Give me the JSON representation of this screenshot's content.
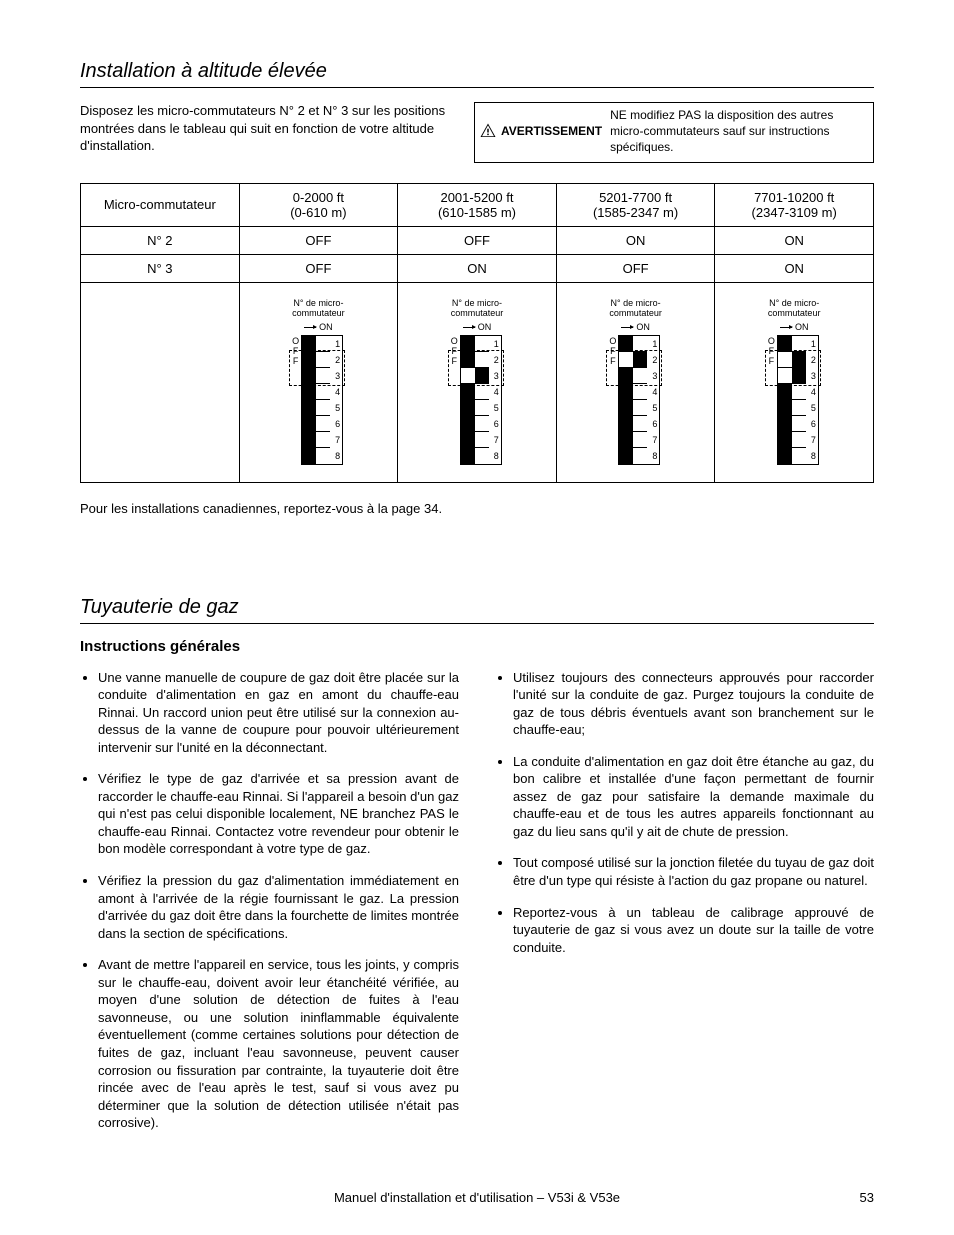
{
  "section1": {
    "title": "Installation à altitude élevée",
    "intro": "Disposez les micro-commutateurs N° 2 et N° 3 sur les positions montrées dans le tableau qui suit en fonction de votre altitude d'installation.",
    "warning_label": "AVERTISSEMENT",
    "warning_text": "NE modifiez PAS la disposition des autres micro-commutateurs sauf sur instructions spécifiques."
  },
  "table": {
    "header_row": [
      "Micro-commutateur",
      "0-2000 ft\n(0-610 m)",
      "2001-5200 ft\n(610-1585 m)",
      "5201-7700 ft\n(1585-2347 m)",
      "7701-10200 ft\n(2347-3109 m)"
    ],
    "row_n2": [
      "N° 2",
      "OFF",
      "OFF",
      "ON",
      "ON"
    ],
    "row_n3": [
      "N° 3",
      "OFF",
      "ON",
      "OFF",
      "ON"
    ],
    "diag_label": "N° de micro-\ncommutateur",
    "diag_on": "ON",
    "diag_off_letters": [
      "O",
      "F",
      "F"
    ],
    "switch_numbers": [
      "1",
      "2",
      "3",
      "4",
      "5",
      "6",
      "7",
      "8"
    ],
    "diagrams": [
      {
        "on_switches": []
      },
      {
        "on_switches": [
          3
        ]
      },
      {
        "on_switches": [
          2
        ]
      },
      {
        "on_switches": [
          2,
          3
        ]
      }
    ]
  },
  "post_table": "Pour les installations canadiennes, reportez-vous à la page 34.",
  "section2": {
    "title": "Tuyauterie de gaz",
    "subheading": "Instructions générales",
    "bullets": [
      "Une vanne manuelle de coupure de gaz doit être placée sur la conduite d'alimentation en gaz en amont du chauffe-eau Rinnai. Un raccord union peut être utilisé sur la connexion au-dessus de la vanne de coupure pour pouvoir ultérieurement intervenir sur l'unité en la déconnectant.",
      "Vérifiez le type de gaz d'arrivée et sa pression avant de raccorder le chauffe-eau Rinnai. Si l'appareil a besoin d'un gaz qui n'est pas celui disponible localement, NE branchez PAS le chauffe-eau Rinnai. Contactez votre revendeur pour obtenir le bon modèle correspondant à votre type de gaz.",
      "Vérifiez la pression du gaz d'alimentation immédiatement en amont à l'arrivée de la régie fournissant le gaz. La pression d'arrivée du gaz doit être dans la fourchette de limites montrée dans la section de spécifications.",
      "Avant de mettre l'appareil en service, tous les joints, y compris sur le chauffe-eau, doivent avoir leur étanchéité vérifiée, au moyen d'une solution de détection de fuites à l'eau savonneuse, ou une solution ininflammable équivalente éventuellement (comme certaines solutions pour détection de fuites de gaz, incluant l'eau savonneuse, peuvent causer corrosion ou fissuration par contrainte, la tuyauterie doit être rincée avec de l'eau après le test, sauf si vous avez pu déterminer que la solution de détection utilisée n'était pas corrosive).",
      "Utilisez toujours des connecteurs approuvés pour raccorder l'unité sur la conduite de gaz. Purgez toujours la conduite de gaz de tous débris éventuels avant son branchement sur le chauffe-eau;",
      "La conduite d'alimentation en gaz doit être étanche au gaz, du bon calibre et installée d'une façon permettant de fournir assez de gaz pour satisfaire la demande maximale du chauffe-eau et de tous les autres appareils fonctionnant au gaz du lieu sans qu'il y ait de chute de pression.",
      "Tout composé utilisé sur la jonction filetée du tuyau de gaz doit être d'un type qui résiste à l'action du gaz propane ou naturel.",
      "Reportez-vous à un tableau de calibrage approuvé de tuyauterie de gaz si vous avez un doute sur la taille de votre conduite."
    ]
  },
  "footer": {
    "center": "Manuel d'installation et d'utilisation – V53i & V53e",
    "page": "53"
  }
}
